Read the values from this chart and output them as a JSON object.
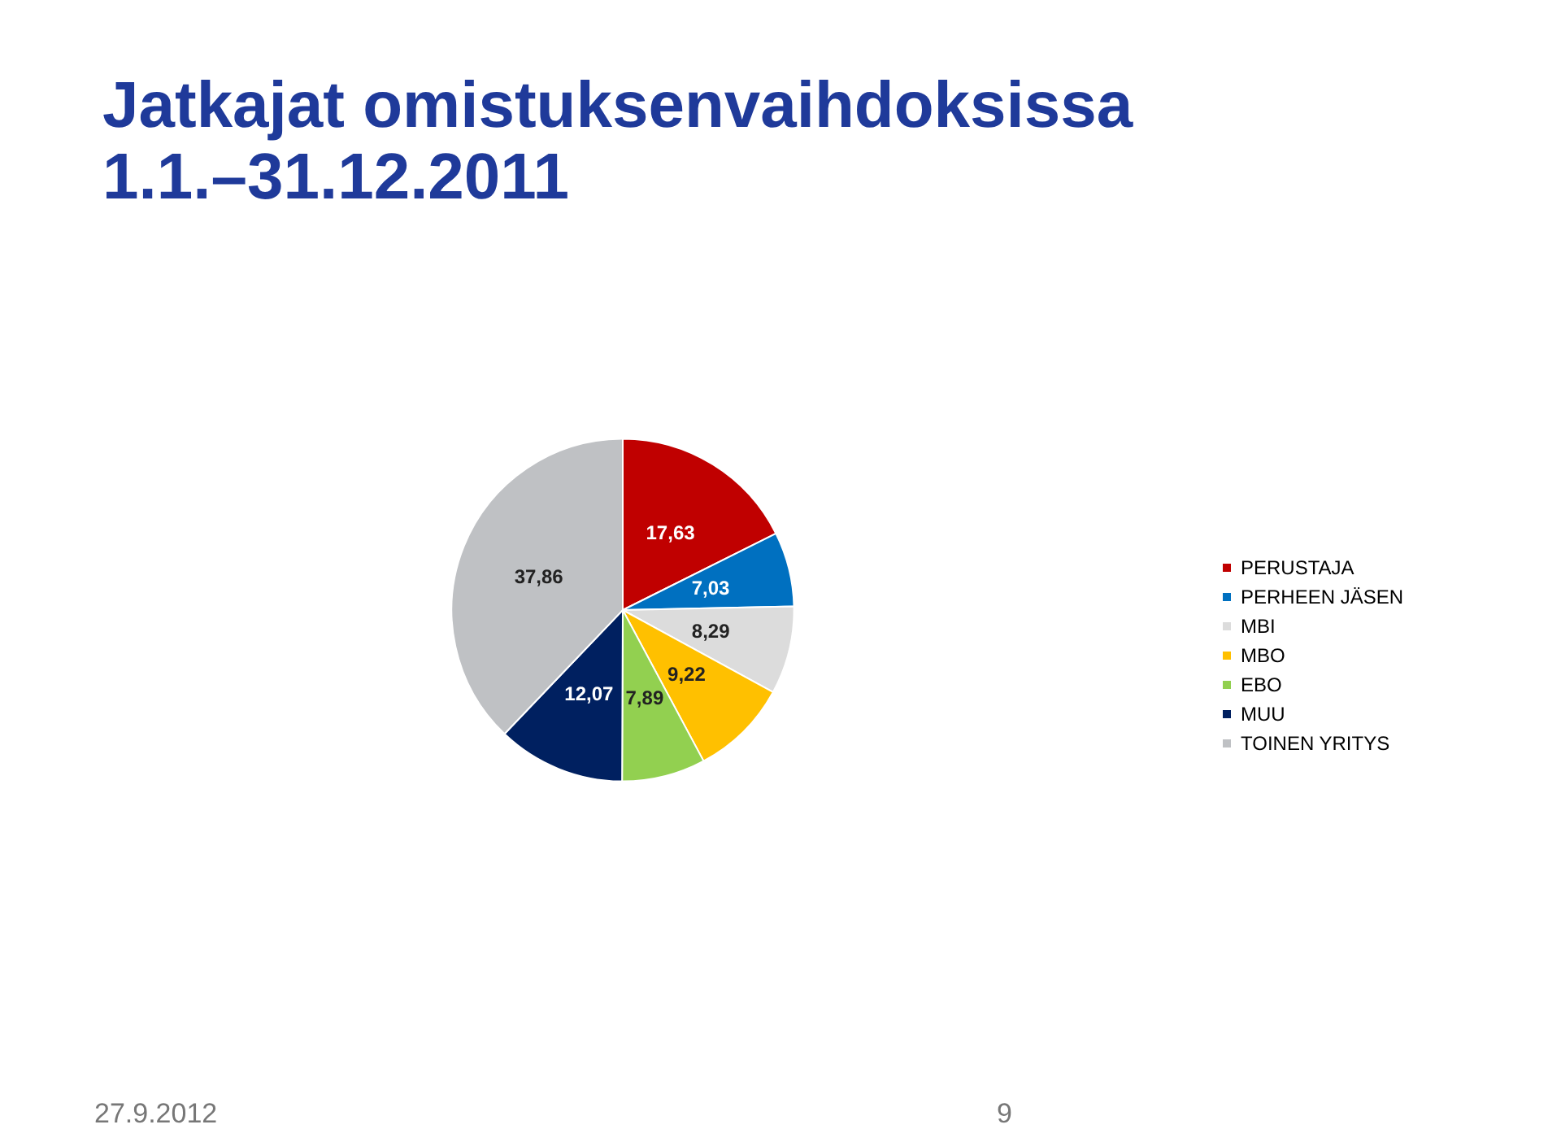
{
  "chart_data": {
    "type": "pie",
    "title": "Jatkajat omistuksenvaihdoksissa",
    "subtitle": "1.1.–31.12.2011",
    "categories": [
      "PERUSTAJA",
      "PERHEEN JÄSEN",
      "MBI",
      "MBO",
      "EBO",
      "MUU",
      "TOINEN YRITYS"
    ],
    "values": [
      17.63,
      7.03,
      8.29,
      9.22,
      7.89,
      12.07,
      37.86
    ],
    "value_labels": [
      "17,63",
      "7,03",
      "8,29",
      "9,22",
      "7,89",
      "12,07",
      "37,86"
    ],
    "colors": [
      "#c00000",
      "#0070c0",
      "#dcdcdc",
      "#ffc000",
      "#92d050",
      "#002060",
      "#bfc1c4"
    ],
    "legend": "right",
    "annotations": [
      "27.9.2012",
      "9"
    ]
  }
}
